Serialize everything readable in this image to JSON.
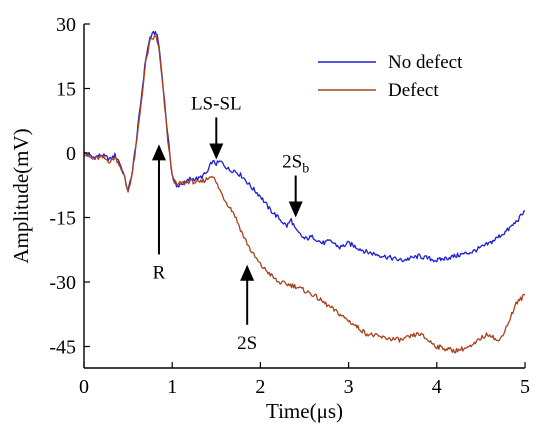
{
  "chart_data": {
    "type": "line",
    "title": "",
    "xlabel": "Time(μs)",
    "ylabel": "Amplitude(mV)",
    "xlim": [
      0,
      5
    ],
    "ylim": [
      -50,
      30
    ],
    "x_ticks": [
      0,
      1,
      2,
      3,
      4,
      5
    ],
    "y_ticks": [
      30,
      15,
      0,
      -15,
      -30,
      -45
    ],
    "grid": false,
    "legend_position": "top-right",
    "series": [
      {
        "name": "No defect",
        "color": "#1f1fd6",
        "x": [
          0,
          0.1,
          0.2,
          0.3,
          0.35,
          0.4,
          0.45,
          0.5,
          0.55,
          0.6,
          0.65,
          0.7,
          0.75,
          0.8,
          0.82,
          0.85,
          0.9,
          0.95,
          1.0,
          1.05,
          1.1,
          1.15,
          1.2,
          1.3,
          1.4,
          1.45,
          1.5,
          1.55,
          1.6,
          1.65,
          1.7,
          1.8,
          1.9,
          2.0,
          2.1,
          2.2,
          2.3,
          2.35,
          2.4,
          2.5,
          2.6,
          2.7,
          2.8,
          2.9,
          3.0,
          3.2,
          3.4,
          3.6,
          3.8,
          4.0,
          4.2,
          4.4,
          4.6,
          4.8,
          4.9,
          5.0
        ],
        "y": [
          0,
          -1,
          -0.5,
          -1.5,
          -0.5,
          -2,
          -5,
          -9,
          -4,
          4,
          13,
          22,
          27,
          28,
          28,
          25,
          15,
          4,
          -5,
          -8,
          -7,
          -7,
          -6,
          -6,
          -4.5,
          -2,
          -2.5,
          -2,
          -3,
          -4,
          -4,
          -5.5,
          -8,
          -10,
          -13,
          -15,
          -17,
          -15.5,
          -18,
          -20,
          -19.5,
          -21,
          -20.5,
          -22,
          -21,
          -23,
          -24,
          -25,
          -24,
          -25,
          -24,
          -23,
          -21,
          -18,
          -16,
          -13.5
        ]
      },
      {
        "name": "Defect",
        "color": "#a8421c",
        "x": [
          0,
          0.1,
          0.2,
          0.3,
          0.35,
          0.4,
          0.45,
          0.5,
          0.55,
          0.6,
          0.65,
          0.7,
          0.75,
          0.8,
          0.82,
          0.85,
          0.9,
          0.95,
          1.0,
          1.05,
          1.1,
          1.15,
          1.2,
          1.3,
          1.4,
          1.45,
          1.5,
          1.6,
          1.7,
          1.8,
          1.9,
          2.0,
          2.1,
          2.2,
          2.4,
          2.6,
          2.8,
          3.0,
          3.2,
          3.4,
          3.6,
          3.8,
          4.0,
          4.2,
          4.4,
          4.5,
          4.6,
          4.7,
          4.8,
          4.9,
          5.0
        ],
        "y": [
          0,
          -1.5,
          -1,
          -2,
          -1,
          -2.5,
          -5,
          -9,
          -4.5,
          3,
          12,
          21,
          26,
          27,
          27,
          24,
          14,
          3,
          -5.5,
          -7.5,
          -7,
          -7,
          -6.5,
          -7,
          -6,
          -5,
          -7,
          -11,
          -14,
          -19,
          -23,
          -26,
          -28,
          -30,
          -31,
          -33,
          -36,
          -39,
          -42,
          -43,
          -43.5,
          -42,
          -45,
          -46,
          -45,
          -43,
          -42,
          -44,
          -40,
          -35,
          -33
        ]
      }
    ],
    "annotations": [
      {
        "label": "R",
        "subscript": "",
        "x": 0.85,
        "y": 2,
        "direction": "up"
      },
      {
        "label": "LS-SL",
        "subscript": "",
        "x": 1.5,
        "y": -1.5,
        "direction": "down"
      },
      {
        "label": "2S",
        "subscript": "b",
        "x": 2.4,
        "y": -15,
        "direction": "down"
      },
      {
        "label": "2S",
        "subscript": "",
        "x": 1.85,
        "y": -26,
        "direction": "up"
      }
    ]
  }
}
